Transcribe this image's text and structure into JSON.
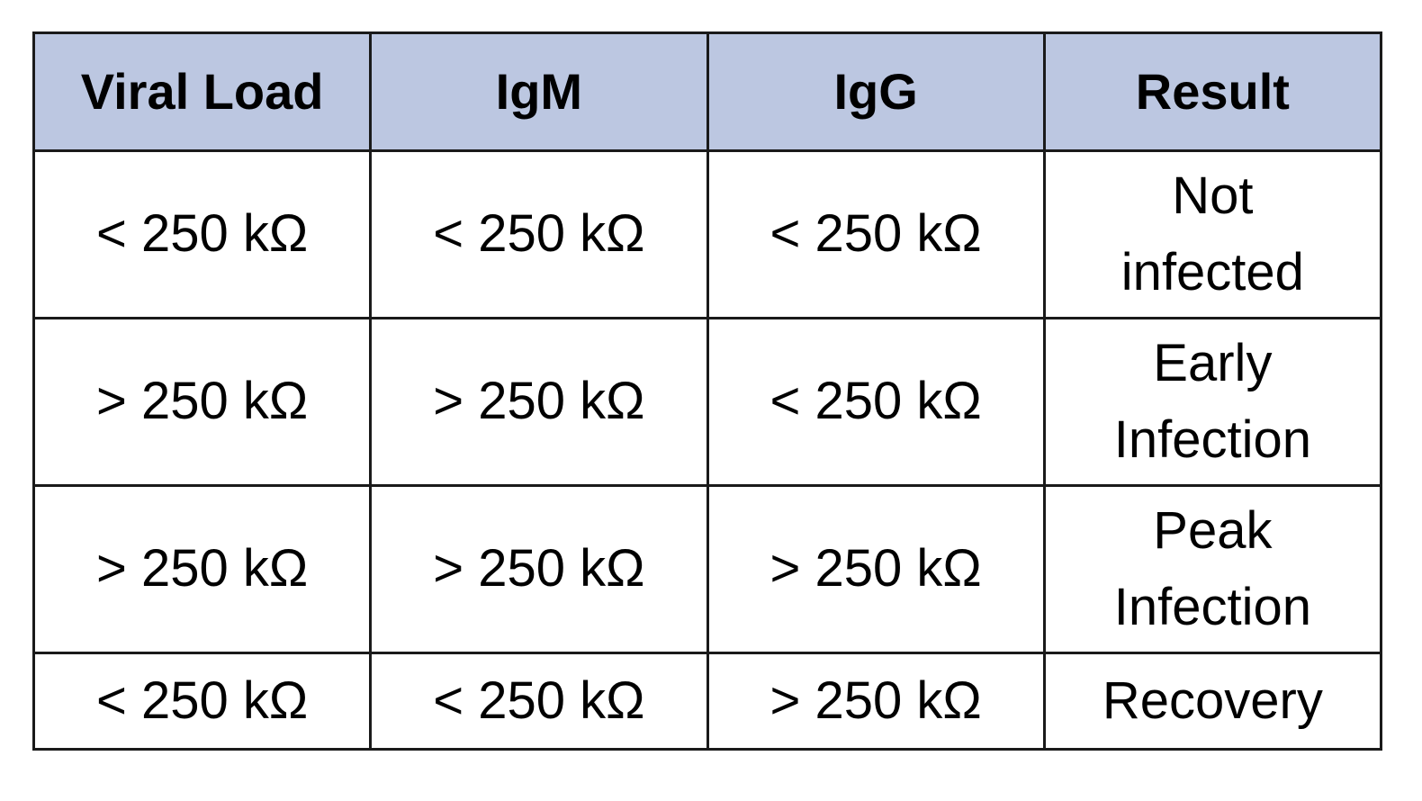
{
  "colors": {
    "header_background": "#bcc7e1",
    "cell_background": "#ffffff",
    "border": "#1a1a1a",
    "text": "#000000"
  },
  "table": {
    "headers": [
      "Viral Load",
      "IgM",
      "IgG",
      "Result"
    ],
    "rows": [
      [
        "< 250 kΩ",
        "< 250 kΩ",
        "< 250 kΩ",
        "Not infected"
      ],
      [
        "> 250 kΩ",
        "> 250 kΩ",
        "< 250 kΩ",
        "Early Infection"
      ],
      [
        "> 250 kΩ",
        "> 250 kΩ",
        "> 250 kΩ",
        "Peak Infection"
      ],
      [
        "< 250 kΩ",
        "< 250 kΩ",
        "> 250 kΩ",
        "Recovery"
      ]
    ]
  }
}
